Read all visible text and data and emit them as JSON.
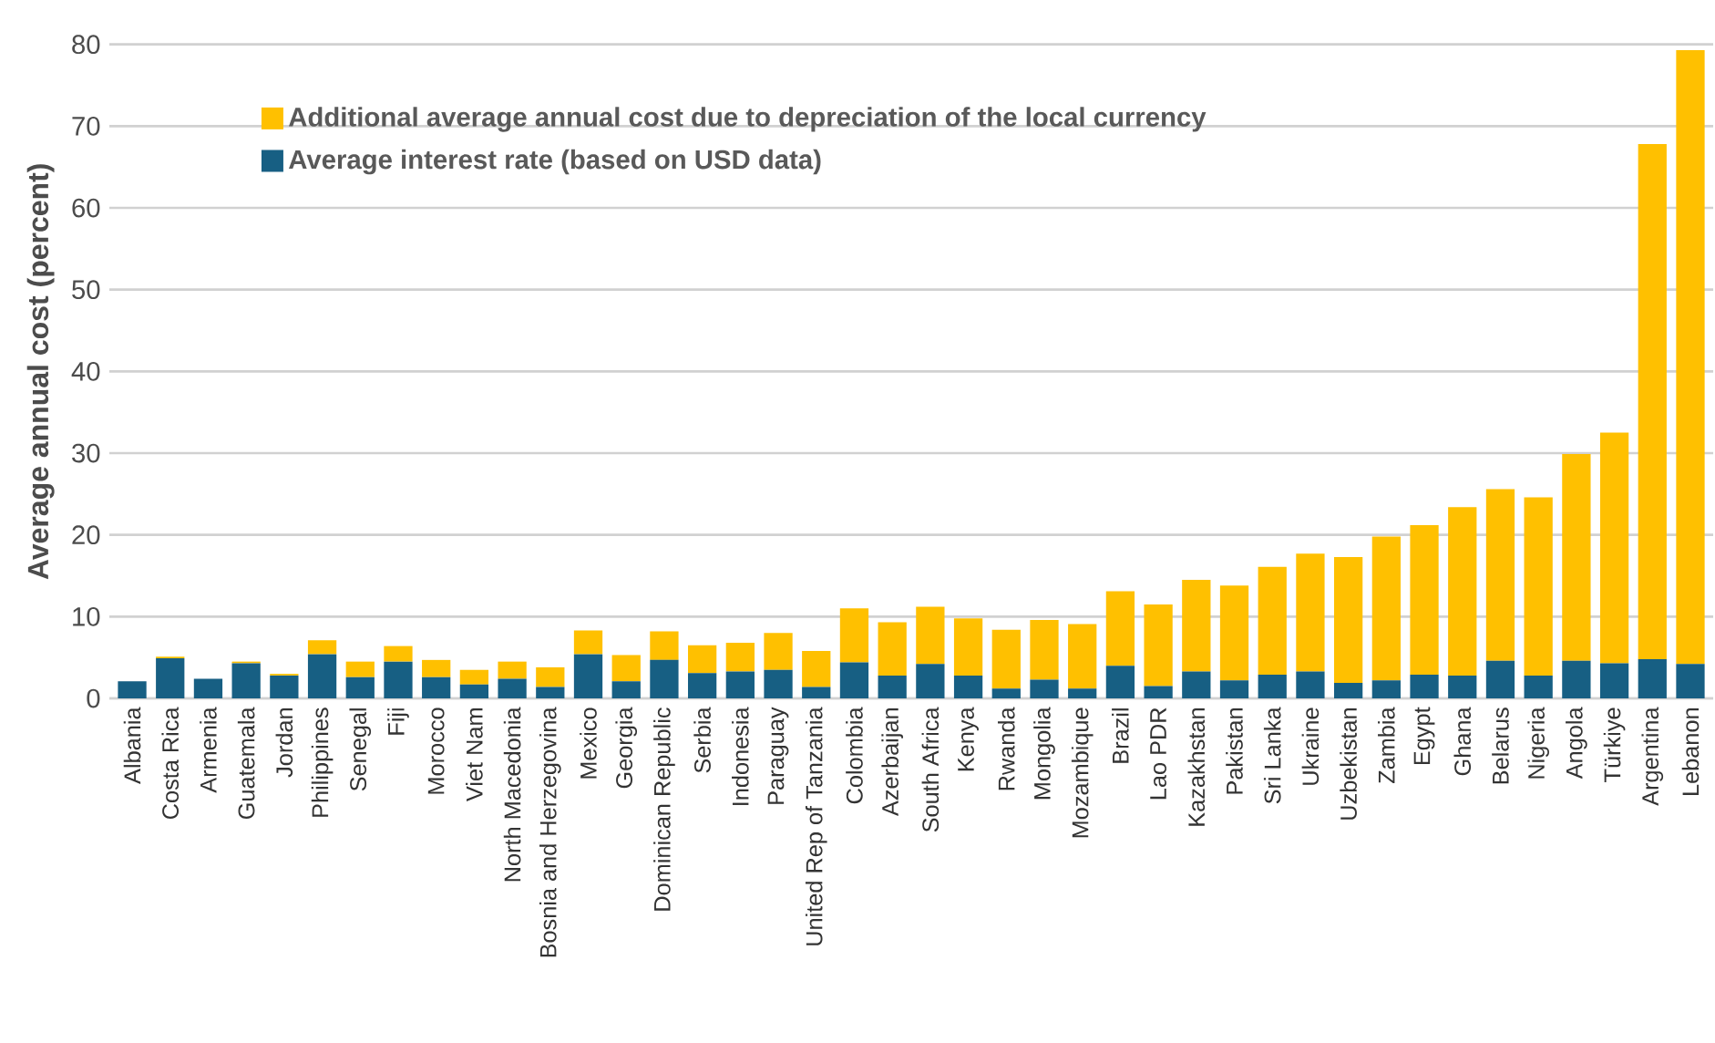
{
  "chart_data": {
    "type": "bar",
    "stacked": true,
    "ylabel": "Average annual cost (percent)",
    "categories": [
      "Albania",
      "Costa Rica",
      "Armenia",
      "Guatemala",
      "Jordan",
      "Philippines",
      "Senegal",
      "Fiji",
      "Morocco",
      "Viet Nam",
      "North Macedonia",
      "Bosnia and Herzegovina",
      "Mexico",
      "Georgia",
      "Dominican Republic",
      "Serbia",
      "Indonesia",
      "Paraguay",
      "United Rep of Tanzania",
      "Colombia",
      "Azerbaijan",
      "South Africa",
      "Kenya",
      "Rwanda",
      "Mongolia",
      "Mozambique",
      "Brazil",
      "Lao PDR",
      "Kazakhstan",
      "Pakistan",
      "Sri Lanka",
      "Ukraine",
      "Uzbekistan",
      "Zambia",
      "Egypt",
      "Ghana",
      "Belarus",
      "Nigeria",
      "Angola",
      "Türkiye",
      "Argentina",
      "Lebanon"
    ],
    "series": [
      {
        "name": "Average interest rate (based on USD data)",
        "color": "#175f83",
        "values": [
          2.1,
          4.9,
          2.4,
          4.3,
          2.8,
          5.4,
          2.6,
          4.5,
          2.6,
          1.7,
          2.4,
          1.4,
          5.4,
          2.1,
          4.7,
          3.1,
          3.3,
          3.5,
          1.4,
          4.4,
          2.8,
          4.2,
          2.8,
          1.2,
          2.3,
          1.2,
          4.0,
          1.5,
          3.3,
          2.2,
          2.9,
          3.3,
          1.9,
          2.2,
          2.9,
          2.8,
          4.6,
          2.8,
          4.6,
          4.3,
          4.8,
          4.2
        ]
      },
      {
        "name": "Additional average annual cost due to depreciation of the local currency",
        "color": "#ffc000",
        "values": [
          0,
          0.2,
          0,
          0.2,
          0.2,
          1.7,
          1.9,
          1.9,
          2.1,
          1.8,
          2.1,
          2.4,
          2.9,
          3.2,
          3.5,
          3.4,
          3.5,
          4.5,
          4.4,
          6.6,
          6.5,
          7.0,
          7.0,
          7.2,
          7.3,
          7.9,
          9.1,
          10.0,
          11.2,
          11.6,
          13.2,
          14.4,
          15.4,
          17.6,
          18.3,
          20.6,
          21.0,
          21.8,
          25.3,
          28.2,
          63.0,
          75.1
        ]
      }
    ],
    "ylim": [
      0,
      80
    ],
    "yticks": [
      0,
      10,
      20,
      30,
      40,
      50,
      60,
      70,
      80
    ],
    "grid": "y",
    "legend": "top left"
  }
}
